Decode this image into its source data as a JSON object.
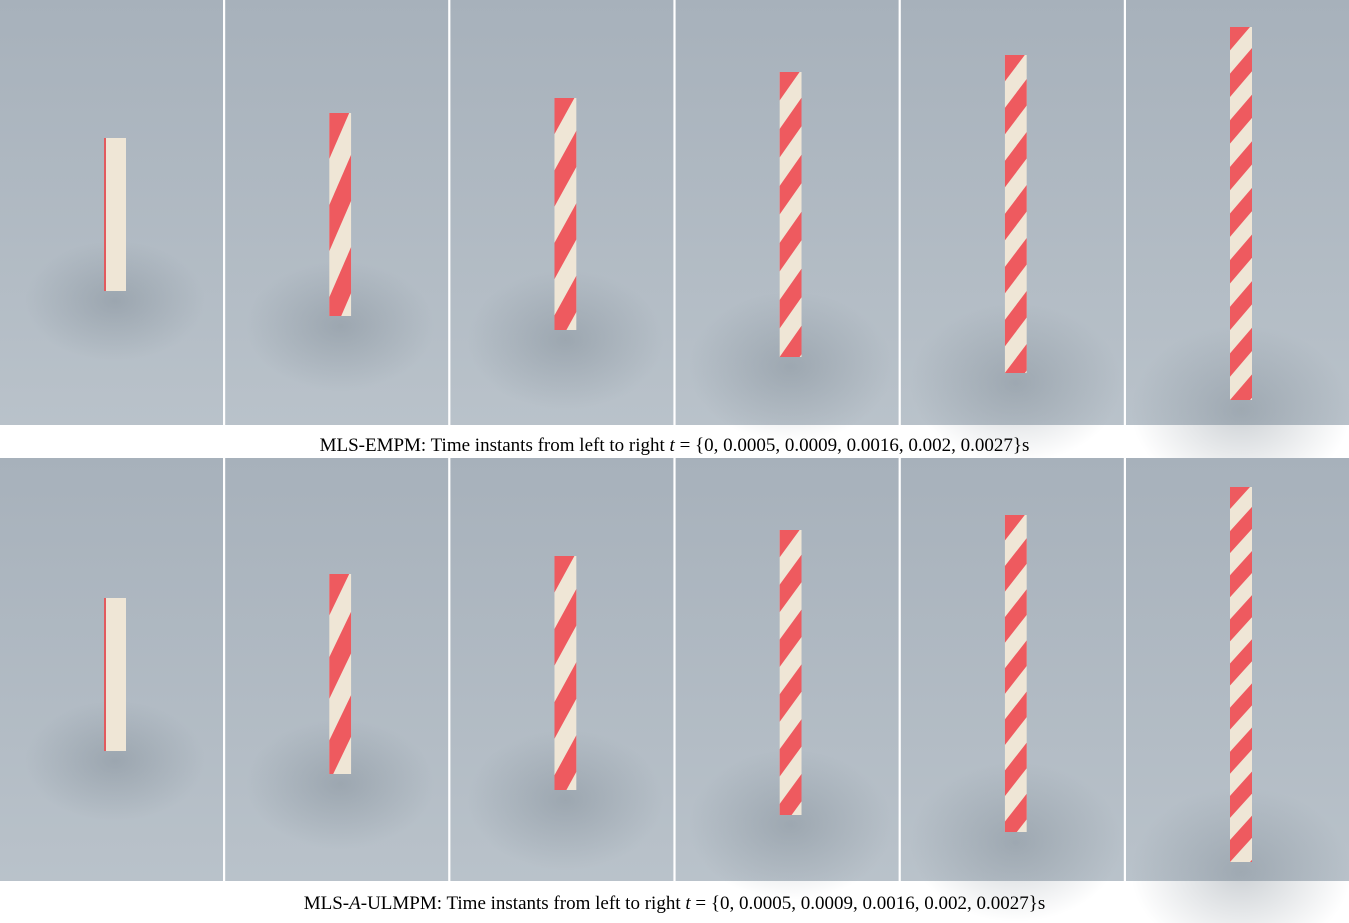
{
  "figure": {
    "rows": [
      {
        "caption": [
          {
            "text": "MLS-EMPM: Time instants from left to right "
          },
          {
            "text": "t",
            "italic": true
          },
          {
            "text": " = {0, 0.0005, 0.0009, 0.0016, 0.002, 0.0027}s"
          }
        ]
      },
      {
        "caption": [
          {
            "text": "MLS-"
          },
          {
            "text": "A",
            "italic": true
          },
          {
            "text": "-ULMPM: Time instants from left to right "
          },
          {
            "text": "t",
            "italic": true
          },
          {
            "text": " = {0, 0.0005, 0.0009, 0.0016, 0.002, 0.0027}s"
          }
        ]
      }
    ]
  }
}
